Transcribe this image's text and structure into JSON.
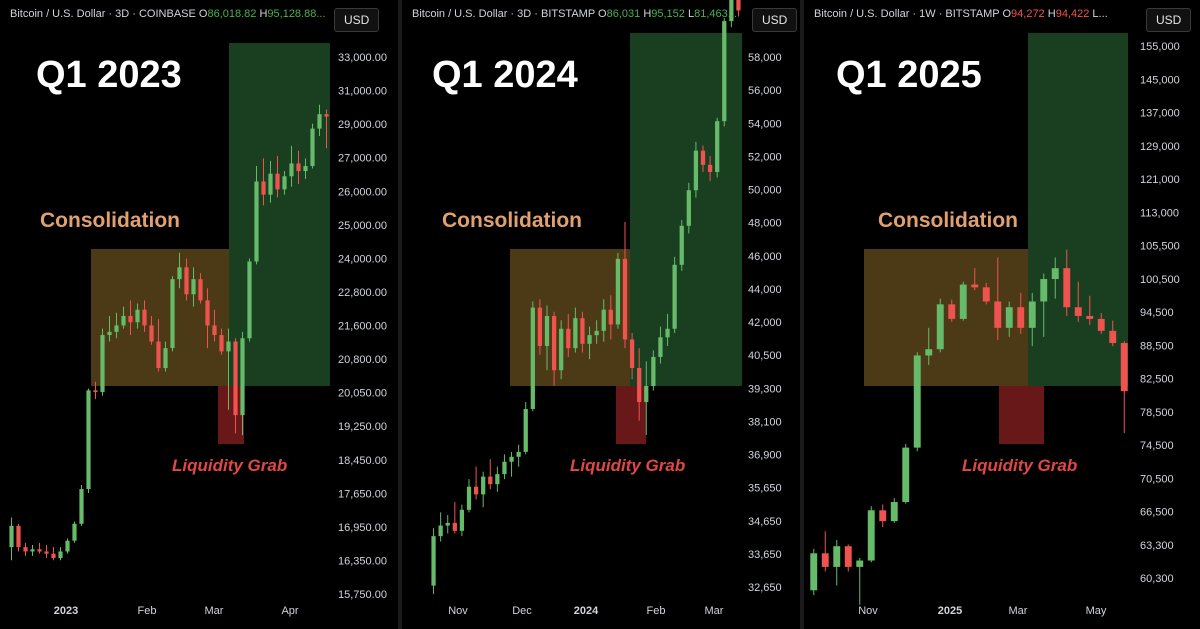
{
  "panels": [
    {
      "id": "p1",
      "left": 0,
      "width": 398,
      "plotRight": 330,
      "header": {
        "symbol": "Bitcoin / U.S. Dollar · 3D · COINBASE",
        "o_label": "O",
        "o": "86,018.82",
        "h_label": "H",
        "h": "95,128.88",
        "tail": "..."
      },
      "currency": "USD",
      "title": "Q1 2023",
      "consolidation_label": "Consolidation",
      "liquidity_label": "Liquidity Grab",
      "y_ticks": [
        "33,000.00",
        "31,000.00",
        "29,000.00",
        "27,000.00",
        "26,000.00",
        "25,000.00",
        "24,000.00",
        "22,800.00",
        "21,600.00",
        "20,800.00",
        "20,050.00",
        "19,250.00",
        "18,450.00",
        "17,650.00",
        "16,950.00",
        "16,350.00",
        "15,750.00"
      ],
      "x_ticks": [
        {
          "label": "2023",
          "bold": true
        },
        {
          "label": "Feb",
          "bold": false
        },
        {
          "label": "Mar",
          "bold": false
        },
        {
          "label": "Apr",
          "bold": false
        }
      ]
    },
    {
      "id": "p2",
      "left": 402,
      "width": 398,
      "plotRight": 742,
      "header": {
        "symbol": "Bitcoin / U.S. Dollar · 3D · BITSTAMP",
        "o_label": "O",
        "o": "86,031",
        "h_label": "H",
        "h": "95,152",
        "l_label": "L",
        "l": "81,463..."
      },
      "currency": "USD",
      "title": "Q1 2024",
      "consolidation_label": "Consolidation",
      "liquidity_label": "Liquidity Grab",
      "y_ticks": [
        "58,000",
        "56,000",
        "54,000",
        "52,000",
        "50,000",
        "48,000",
        "46,000",
        "44,000",
        "42,000",
        "40,500",
        "39,300",
        "38,100",
        "36,900",
        "35,650",
        "34,650",
        "33,650",
        "32,650"
      ],
      "x_ticks": [
        {
          "label": "Nov",
          "bold": false
        },
        {
          "label": "Dec",
          "bold": false
        },
        {
          "label": "2024",
          "bold": true
        },
        {
          "label": "Feb",
          "bold": false
        },
        {
          "label": "Mar",
          "bold": false
        }
      ]
    },
    {
      "id": "p3",
      "left": 804,
      "width": 396,
      "plotRight": 1140,
      "header": {
        "symbol": "Bitcoin / U.S. Dollar · 1W · BITSTAMP",
        "o_label": "O",
        "o": "94,272",
        "h_label": "H",
        "h": "94,422",
        "tail": "L..."
      },
      "currency": "USD",
      "title": "Q1 2025",
      "consolidation_label": "Consolidation",
      "liquidity_label": "Liquidity Grab",
      "y_ticks": [
        "155,000",
        "145,000",
        "137,000",
        "129,000",
        "121,000",
        "113,000",
        "105,500",
        "100,500",
        "94,500",
        "88,500",
        "82,500",
        "78,500",
        "74,500",
        "70,500",
        "66,500",
        "63,300",
        "60,300"
      ],
      "x_ticks": [
        {
          "label": "Nov",
          "bold": false
        },
        {
          "label": "2025",
          "bold": true
        },
        {
          "label": "Mar",
          "bold": false
        },
        {
          "label": "May",
          "bold": false
        }
      ]
    }
  ],
  "colors": {
    "up": "#66bb6a",
    "down": "#ef5350",
    "consolidation_box": "#8a6a2a",
    "target_box": "#1f4a26",
    "liquidity_box": "#7a1c1c"
  },
  "chart_data": [
    {
      "type": "candlestick",
      "title": "Q1 2023",
      "y_scale": "log",
      "ylim": [
        15500,
        34000
      ],
      "zones": {
        "consolidation": {
          "x_range": [
            "Jan 28",
            "Mar 6"
          ],
          "y_range": [
            20900,
            25100
          ]
        },
        "target": {
          "x_range": [
            "Mar 6",
            "Apr 14"
          ],
          "y_range": [
            20900,
            33900
          ]
        },
        "liquidity_grab": {
          "x_range": [
            "Mar 3",
            "Mar 12"
          ],
          "y_range": [
            19600,
            20900
          ]
        }
      },
      "candles": [
        [
          16800,
          17500,
          16500,
          17300
        ],
        [
          17300,
          17350,
          16700,
          16800
        ],
        [
          16800,
          16900,
          16600,
          16700
        ],
        [
          16700,
          16850,
          16600,
          16750
        ],
        [
          16750,
          16900,
          16650,
          16700
        ],
        [
          16700,
          16850,
          16550,
          16650
        ],
        [
          16650,
          16800,
          16500,
          16550
        ],
        [
          16550,
          16800,
          16500,
          16700
        ],
        [
          16700,
          17000,
          16650,
          16950
        ],
        [
          16950,
          17400,
          16900,
          17350
        ],
        [
          17350,
          18300,
          17300,
          18200
        ],
        [
          18200,
          20900,
          18100,
          20850
        ],
        [
          20850,
          21100,
          20600,
          20800
        ],
        [
          20800,
          22700,
          20700,
          22500
        ],
        [
          22500,
          23100,
          22300,
          22600
        ],
        [
          22600,
          23200,
          22400,
          22800
        ],
        [
          22800,
          23400,
          22700,
          23100
        ],
        [
          23100,
          23600,
          22500,
          22900
        ],
        [
          22900,
          23500,
          22700,
          23300
        ],
        [
          23300,
          23600,
          22600,
          22800
        ],
        [
          22800,
          23100,
          22200,
          22300
        ],
        [
          22300,
          23000,
          21400,
          21500
        ],
        [
          21500,
          22300,
          21400,
          22100
        ],
        [
          22100,
          24400,
          22000,
          24300
        ],
        [
          24300,
          25200,
          24000,
          24700
        ],
        [
          24700,
          25000,
          23600,
          23800
        ],
        [
          23800,
          24700,
          23400,
          24300
        ],
        [
          24300,
          24500,
          23500,
          23600
        ],
        [
          23600,
          24000,
          22100,
          22800
        ],
        [
          22800,
          23300,
          22300,
          22500
        ],
        [
          22500,
          22700,
          21900,
          22000
        ],
        [
          22000,
          22700,
          20300,
          22300
        ],
        [
          22300,
          22400,
          19650,
          20150
        ],
        [
          20150,
          22600,
          19600,
          22400
        ],
        [
          22400,
          25000,
          22300,
          24900
        ],
        [
          24900,
          28400,
          24800,
          27800
        ],
        [
          27800,
          28700,
          26900,
          27300
        ],
        [
          27300,
          28600,
          27000,
          28100
        ],
        [
          28100,
          28800,
          27200,
          27500
        ],
        [
          27500,
          28200,
          27300,
          28000
        ],
        [
          28000,
          29200,
          27600,
          28500
        ],
        [
          28500,
          29000,
          27700,
          28200
        ],
        [
          28200,
          28700,
          27900,
          28400
        ],
        [
          28400,
          30100,
          28300,
          29900
        ],
        [
          29900,
          30900,
          29600,
          30500
        ],
        [
          30500,
          30700,
          29100,
          30400
        ]
      ]
    },
    {
      "type": "candlestick",
      "title": "Q1 2024",
      "y_scale": "log",
      "ylim": [
        32200,
        62000
      ],
      "zones": {
        "consolidation": {
          "x_range": [
            "Dec 2",
            "Jan 20"
          ],
          "y_range": [
            40400,
            46700
          ]
        },
        "target": {
          "x_range": [
            "Jan 20",
            "Mar 8"
          ],
          "y_range": [
            40400,
            59500
          ]
        },
        "liquidity_grab": {
          "x_range": [
            "Jan 17",
            "Jan 26"
          ],
          "y_range": [
            37700,
            40400
          ]
        }
      },
      "candles": [
        [
          32700,
          34800,
          32400,
          34500
        ],
        [
          34500,
          35400,
          34300,
          34900
        ],
        [
          34900,
          35300,
          34600,
          35000
        ],
        [
          35000,
          35800,
          34600,
          34700
        ],
        [
          34700,
          35700,
          34500,
          35500
        ],
        [
          35500,
          36700,
          35400,
          36400
        ],
        [
          36400,
          37200,
          35900,
          36100
        ],
        [
          36100,
          37000,
          35600,
          36800
        ],
        [
          36800,
          37500,
          36300,
          36500
        ],
        [
          36500,
          37200,
          36200,
          36900
        ],
        [
          36900,
          37700,
          36700,
          37400
        ],
        [
          37400,
          37800,
          36800,
          37600
        ],
        [
          37600,
          38100,
          37200,
          37800
        ],
        [
          37800,
          39900,
          37700,
          39600
        ],
        [
          39600,
          44500,
          39500,
          44200
        ],
        [
          44200,
          44600,
          42000,
          42400
        ],
        [
          42400,
          44300,
          41300,
          43800
        ],
        [
          43800,
          44000,
          40600,
          41300
        ],
        [
          41300,
          43600,
          40900,
          43200
        ],
        [
          43200,
          43900,
          41900,
          42300
        ],
        [
          42300,
          44200,
          42100,
          43700
        ],
        [
          43700,
          44000,
          42100,
          42500
        ],
        [
          42500,
          43300,
          41800,
          42900
        ],
        [
          42900,
          43600,
          42500,
          43100
        ],
        [
          43100,
          44600,
          42600,
          44100
        ],
        [
          44100,
          44800,
          42700,
          43400
        ],
        [
          43400,
          46900,
          43200,
          46600
        ],
        [
          46600,
          48500,
          42300,
          42700
        ],
        [
          42700,
          43000,
          40900,
          41400
        ],
        [
          41400,
          42300,
          39100,
          39900
        ],
        [
          39900,
          41700,
          38500,
          40600
        ],
        [
          40600,
          42200,
          40400,
          41900
        ],
        [
          41900,
          43300,
          41600,
          42800
        ],
        [
          42800,
          43900,
          42400,
          43200
        ],
        [
          43200,
          46700,
          43000,
          46300
        ],
        [
          46300,
          48600,
          46000,
          48300
        ],
        [
          48300,
          50600,
          47900,
          50200
        ],
        [
          50200,
          52900,
          49800,
          52400
        ],
        [
          52400,
          52700,
          51200,
          51600
        ],
        [
          51600,
          52100,
          50700,
          51200
        ],
        [
          51200,
          54300,
          50900,
          54100
        ],
        [
          54100,
          60500,
          53800,
          60300
        ],
        [
          60300,
          62500,
          59900,
          61800
        ],
        [
          61800,
          62200,
          60600,
          61000
        ]
      ]
    },
    {
      "type": "candlestick",
      "title": "Q1 2025",
      "y_scale": "log",
      "ylim": [
        59000,
        160000
      ],
      "zones": {
        "consolidation": {
          "x_range": [
            "Nov 18",
            "Feb 28"
          ],
          "y_range": [
            85000,
            108000
          ]
        },
        "target": {
          "x_range": [
            "Feb 28",
            "May 14"
          ],
          "y_range": [
            85000,
            157000
          ]
        },
        "liquidity_grab": {
          "x_range": [
            "Feb 21",
            "Mar 7"
          ],
          "y_range": [
            76500,
            85000
          ]
        }
      },
      "candles": [
        [
          59000,
          63500,
          58500,
          63000
        ],
        [
          63000,
          65500,
          61000,
          61500
        ],
        [
          61500,
          64500,
          59500,
          63800
        ],
        [
          63800,
          64000,
          61000,
          61500
        ],
        [
          61500,
          62500,
          57500,
          62200
        ],
        [
          62200,
          68500,
          62000,
          68000
        ],
        [
          68000,
          68700,
          66000,
          66700
        ],
        [
          66700,
          69500,
          66500,
          69000
        ],
        [
          69000,
          76500,
          68800,
          76000
        ],
        [
          76000,
          90000,
          75500,
          89500
        ],
        [
          89500,
          94000,
          88000,
          90500
        ],
        [
          90500,
          99000,
          90000,
          98000
        ],
        [
          98000,
          98800,
          95000,
          95500
        ],
        [
          95500,
          102000,
          95200,
          101500
        ],
        [
          101500,
          104500,
          100500,
          101000
        ],
        [
          101000,
          101800,
          98000,
          98500
        ],
        [
          98500,
          106500,
          92000,
          94000
        ],
        [
          94000,
          98500,
          92500,
          97500
        ],
        [
          97500,
          100000,
          93000,
          94000
        ],
        [
          94000,
          100000,
          91000,
          98500
        ],
        [
          98500,
          103500,
          92500,
          102500
        ],
        [
          102500,
          106500,
          99000,
          104500
        ],
        [
          104500,
          108000,
          96000,
          97500
        ],
        [
          97500,
          102000,
          95000,
          96000
        ],
        [
          96000,
          99500,
          94500,
          95500
        ],
        [
          95500,
          96500,
          93000,
          93500
        ],
        [
          93500,
          95200,
          91000,
          91500
        ],
        [
          91500,
          91800,
          78000,
          84000
        ]
      ]
    }
  ]
}
